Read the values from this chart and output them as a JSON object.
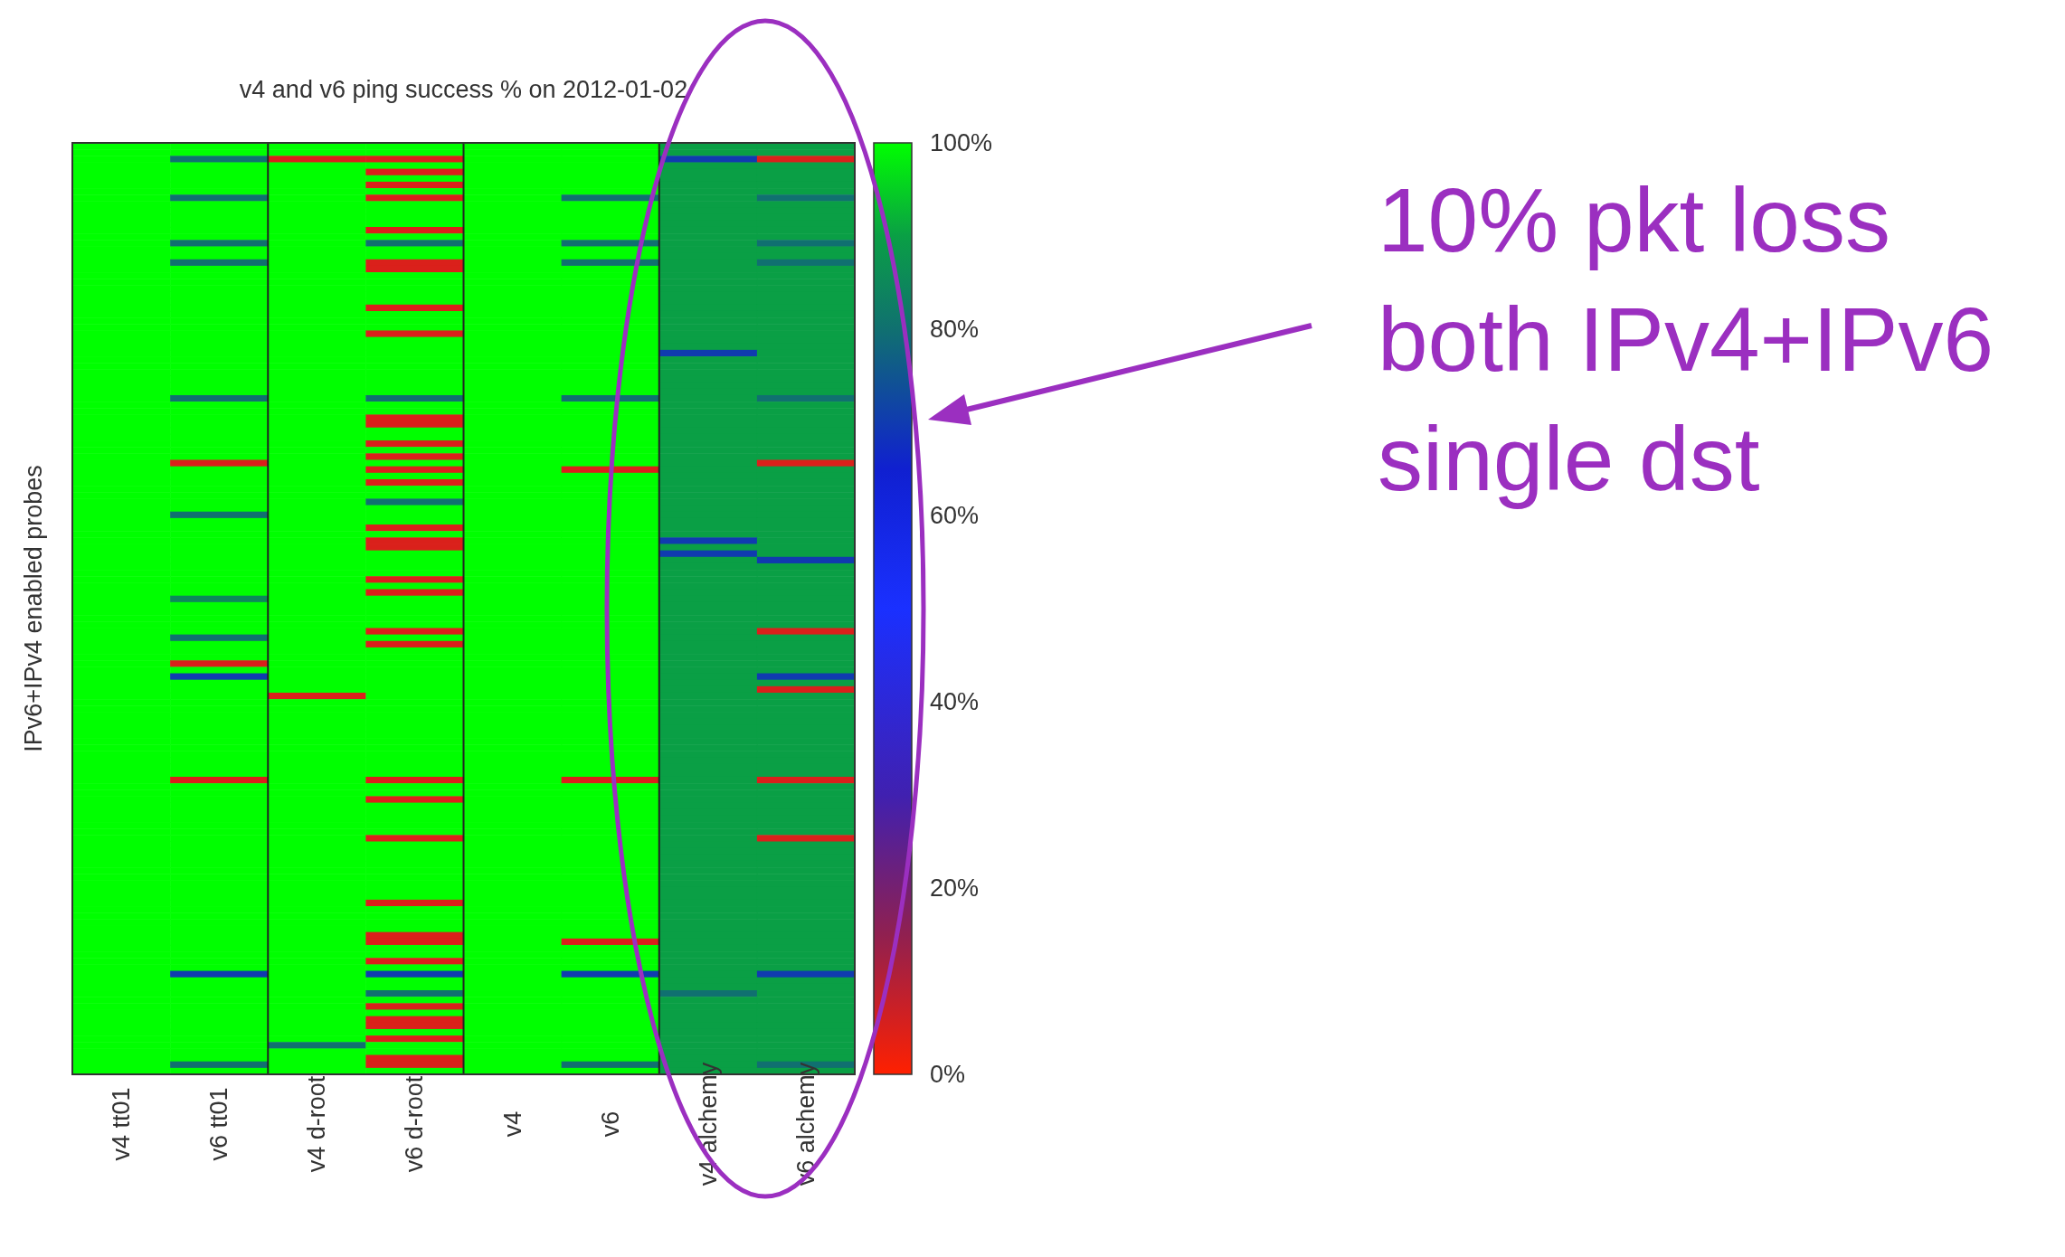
{
  "chart_data": {
    "type": "heatmap",
    "title": "v4 and v6 ping success % on 2012-01-02",
    "ylabel": "IPv6+IPv4 enabled probes",
    "categories": [
      "v4 tt01",
      "v6 tt01",
      "v4 d-root",
      "v6 d-root",
      "v4",
      "v6",
      "v4 alchemy",
      "v6 alchemy"
    ],
    "y_categories": [
      null,
      null,
      null,
      null,
      null,
      null,
      null,
      null,
      null,
      null,
      null,
      null,
      null,
      null,
      null,
      null,
      null,
      null,
      null,
      null,
      null,
      null,
      null,
      null,
      null,
      null,
      null,
      null,
      null,
      null,
      null,
      null,
      null,
      null,
      null,
      null,
      null,
      null,
      null,
      null,
      null,
      null,
      null,
      null,
      null,
      null,
      null,
      null,
      null,
      null,
      null,
      null,
      null,
      null,
      null,
      null,
      null,
      null,
      null,
      null,
      null,
      null,
      null,
      null,
      null,
      null,
      null,
      null,
      null,
      null,
      null,
      null,
      null,
      null,
      null,
      null,
      null,
      null,
      null,
      null,
      null,
      null,
      null,
      null,
      null,
      null,
      null,
      null,
      null,
      null,
      null,
      null,
      null,
      null,
      null,
      null,
      null,
      null,
      null,
      null,
      null,
      null,
      null,
      null,
      null,
      null,
      null,
      null,
      null,
      null,
      null,
      null,
      null,
      null,
      null,
      null,
      null,
      null,
      null,
      null,
      null,
      null,
      null,
      null,
      null,
      null,
      null,
      null,
      null,
      null,
      null,
      null,
      null,
      null,
      null,
      null,
      null,
      null,
      null,
      null,
      null,
      null,
      null,
      null
    ],
    "clim": [
      0,
      100
    ],
    "cticks": [
      {
        "value": 0,
        "label": "0%"
      },
      {
        "value": 20,
        "label": "20%"
      },
      {
        "value": 40,
        "label": "40%"
      },
      {
        "value": 60,
        "label": "60%"
      },
      {
        "value": 80,
        "label": "80%"
      },
      {
        "value": 100,
        "label": "100%"
      }
    ],
    "annotations": [
      "10% pkt loss\nboth IPv4+IPv6\nsingle dst"
    ],
    "cells": [
      [
        100,
        100,
        100,
        100,
        100,
        100,
        90,
        90
      ],
      [
        100,
        100,
        100,
        100,
        100,
        100,
        90,
        90
      ],
      [
        100,
        80,
        5,
        5,
        100,
        100,
        70,
        5
      ],
      [
        100,
        100,
        100,
        100,
        100,
        100,
        90,
        90
      ],
      [
        100,
        100,
        100,
        5,
        100,
        100,
        90,
        90
      ],
      [
        100,
        100,
        100,
        100,
        100,
        100,
        90,
        90
      ],
      [
        100,
        100,
        100,
        5,
        100,
        100,
        90,
        90
      ],
      [
        100,
        100,
        100,
        100,
        100,
        100,
        90,
        90
      ],
      [
        100,
        80,
        100,
        5,
        100,
        80,
        90,
        80
      ],
      [
        100,
        100,
        100,
        100,
        100,
        100,
        90,
        90
      ],
      [
        100,
        100,
        100,
        100,
        100,
        100,
        90,
        90
      ],
      [
        100,
        100,
        100,
        100,
        100,
        100,
        90,
        90
      ],
      [
        100,
        100,
        100,
        100,
        100,
        100,
        90,
        90
      ],
      [
        100,
        100,
        100,
        5,
        100,
        100,
        90,
        90
      ],
      [
        100,
        100,
        100,
        100,
        100,
        100,
        90,
        90
      ],
      [
        100,
        80,
        100,
        80,
        100,
        80,
        90,
        80
      ],
      [
        100,
        100,
        100,
        100,
        100,
        100,
        90,
        90
      ],
      [
        100,
        100,
        100,
        100,
        100,
        100,
        90,
        90
      ],
      [
        100,
        80,
        100,
        5,
        100,
        80,
        90,
        80
      ],
      [
        100,
        100,
        100,
        5,
        100,
        100,
        90,
        90
      ],
      [
        100,
        100,
        100,
        100,
        100,
        100,
        90,
        90
      ],
      [
        100,
        100,
        100,
        100,
        100,
        100,
        90,
        90
      ],
      [
        100,
        100,
        100,
        100,
        100,
        100,
        90,
        90
      ],
      [
        100,
        100,
        100,
        100,
        100,
        100,
        90,
        90
      ],
      [
        100,
        100,
        100,
        100,
        100,
        100,
        90,
        90
      ],
      [
        100,
        100,
        100,
        5,
        100,
        100,
        90,
        90
      ],
      [
        100,
        100,
        100,
        100,
        100,
        100,
        90,
        90
      ],
      [
        100,
        100,
        100,
        100,
        100,
        100,
        90,
        90
      ],
      [
        100,
        100,
        100,
        100,
        100,
        100,
        90,
        90
      ],
      [
        100,
        100,
        100,
        5,
        100,
        100,
        90,
        90
      ],
      [
        100,
        100,
        100,
        100,
        100,
        100,
        90,
        90
      ],
      [
        100,
        100,
        100,
        100,
        100,
        100,
        90,
        90
      ],
      [
        100,
        100,
        100,
        100,
        100,
        100,
        70,
        90
      ],
      [
        100,
        100,
        100,
        100,
        100,
        100,
        90,
        90
      ],
      [
        100,
        100,
        100,
        100,
        100,
        100,
        90,
        90
      ],
      [
        100,
        100,
        100,
        100,
        100,
        100,
        90,
        90
      ],
      [
        100,
        100,
        100,
        100,
        100,
        100,
        90,
        90
      ],
      [
        100,
        100,
        100,
        100,
        100,
        100,
        90,
        90
      ],
      [
        100,
        100,
        100,
        100,
        100,
        100,
        90,
        90
      ],
      [
        100,
        80,
        100,
        80,
        100,
        80,
        90,
        80
      ],
      [
        100,
        100,
        100,
        100,
        100,
        100,
        90,
        90
      ],
      [
        100,
        100,
        100,
        100,
        100,
        100,
        90,
        90
      ],
      [
        100,
        100,
        100,
        5,
        100,
        100,
        90,
        90
      ],
      [
        100,
        100,
        100,
        5,
        100,
        100,
        90,
        90
      ],
      [
        100,
        100,
        100,
        100,
        100,
        100,
        90,
        90
      ],
      [
        100,
        100,
        100,
        100,
        100,
        100,
        90,
        90
      ],
      [
        100,
        100,
        100,
        5,
        100,
        100,
        90,
        90
      ],
      [
        100,
        100,
        100,
        100,
        100,
        100,
        90,
        90
      ],
      [
        100,
        100,
        100,
        5,
        100,
        100,
        90,
        90
      ],
      [
        100,
        5,
        100,
        100,
        100,
        100,
        90,
        5
      ],
      [
        100,
        100,
        100,
        5,
        100,
        5,
        90,
        90
      ],
      [
        100,
        100,
        100,
        100,
        100,
        100,
        90,
        90
      ],
      [
        100,
        100,
        100,
        5,
        100,
        100,
        90,
        90
      ],
      [
        100,
        100,
        100,
        100,
        100,
        100,
        90,
        90
      ],
      [
        100,
        100,
        100,
        100,
        100,
        100,
        90,
        90
      ],
      [
        100,
        100,
        100,
        80,
        100,
        100,
        90,
        90
      ],
      [
        100,
        100,
        100,
        100,
        100,
        100,
        90,
        90
      ],
      [
        100,
        80,
        100,
        100,
        100,
        100,
        90,
        90
      ],
      [
        100,
        100,
        100,
        100,
        100,
        100,
        90,
        90
      ],
      [
        100,
        100,
        100,
        5,
        100,
        100,
        90,
        90
      ],
      [
        100,
        100,
        100,
        100,
        100,
        100,
        90,
        90
      ],
      [
        100,
        100,
        100,
        5,
        100,
        100,
        70,
        90
      ],
      [
        100,
        100,
        100,
        5,
        100,
        100,
        90,
        90
      ],
      [
        100,
        100,
        100,
        100,
        100,
        100,
        70,
        90
      ],
      [
        100,
        100,
        100,
        100,
        100,
        100,
        90,
        70
      ],
      [
        100,
        100,
        100,
        100,
        100,
        100,
        90,
        90
      ],
      [
        100,
        100,
        100,
        100,
        100,
        100,
        90,
        90
      ],
      [
        100,
        100,
        100,
        5,
        100,
        100,
        90,
        90
      ],
      [
        100,
        100,
        100,
        100,
        100,
        100,
        90,
        90
      ],
      [
        100,
        100,
        100,
        5,
        100,
        100,
        90,
        90
      ],
      [
        100,
        85,
        100,
        100,
        100,
        100,
        90,
        90
      ],
      [
        100,
        100,
        100,
        100,
        100,
        100,
        90,
        90
      ],
      [
        100,
        100,
        100,
        100,
        100,
        100,
        90,
        90
      ],
      [
        100,
        100,
        100,
        100,
        100,
        100,
        90,
        90
      ],
      [
        100,
        100,
        100,
        100,
        100,
        100,
        90,
        90
      ],
      [
        100,
        100,
        100,
        5,
        100,
        100,
        90,
        5
      ],
      [
        100,
        80,
        100,
        100,
        100,
        100,
        90,
        90
      ],
      [
        100,
        100,
        100,
        5,
        100,
        100,
        90,
        90
      ],
      [
        100,
        100,
        100,
        100,
        100,
        100,
        90,
        90
      ],
      [
        100,
        100,
        100,
        100,
        100,
        100,
        90,
        90
      ],
      [
        100,
        5,
        100,
        100,
        100,
        100,
        90,
        90
      ],
      [
        100,
        100,
        100,
        100,
        100,
        100,
        90,
        90
      ],
      [
        100,
        70,
        100,
        100,
        100,
        100,
        90,
        70
      ],
      [
        100,
        100,
        100,
        100,
        100,
        100,
        90,
        90
      ],
      [
        100,
        100,
        100,
        100,
        100,
        100,
        90,
        5
      ],
      [
        100,
        100,
        5,
        100,
        100,
        100,
        90,
        90
      ],
      [
        100,
        100,
        100,
        100,
        100,
        100,
        90,
        90
      ],
      [
        100,
        100,
        100,
        100,
        100,
        100,
        90,
        90
      ],
      [
        100,
        100,
        100,
        100,
        100,
        100,
        90,
        90
      ],
      [
        100,
        100,
        100,
        100,
        100,
        100,
        90,
        90
      ],
      [
        100,
        100,
        100,
        100,
        100,
        100,
        90,
        90
      ],
      [
        100,
        100,
        100,
        100,
        100,
        100,
        90,
        90
      ],
      [
        100,
        100,
        100,
        100,
        100,
        100,
        90,
        90
      ],
      [
        100,
        100,
        100,
        100,
        100,
        100,
        90,
        90
      ],
      [
        100,
        100,
        100,
        100,
        100,
        100,
        90,
        90
      ],
      [
        100,
        100,
        100,
        100,
        100,
        100,
        90,
        90
      ],
      [
        100,
        100,
        100,
        100,
        100,
        100,
        90,
        90
      ],
      [
        100,
        100,
        100,
        100,
        100,
        100,
        90,
        90
      ],
      [
        100,
        5,
        100,
        5,
        100,
        5,
        90,
        5
      ],
      [
        100,
        100,
        100,
        100,
        100,
        100,
        90,
        90
      ],
      [
        100,
        100,
        100,
        100,
        100,
        100,
        90,
        90
      ],
      [
        100,
        100,
        100,
        5,
        100,
        100,
        90,
        90
      ],
      [
        100,
        100,
        100,
        100,
        100,
        100,
        90,
        90
      ],
      [
        100,
        100,
        100,
        100,
        100,
        100,
        90,
        90
      ],
      [
        100,
        100,
        100,
        100,
        100,
        100,
        90,
        90
      ],
      [
        100,
        100,
        100,
        100,
        100,
        100,
        90,
        90
      ],
      [
        100,
        100,
        100,
        100,
        100,
        100,
        90,
        90
      ],
      [
        100,
        100,
        100,
        5,
        100,
        100,
        90,
        5
      ],
      [
        100,
        100,
        100,
        100,
        100,
        100,
        90,
        90
      ],
      [
        100,
        100,
        100,
        100,
        100,
        100,
        90,
        90
      ],
      [
        100,
        100,
        100,
        100,
        100,
        100,
        90,
        90
      ],
      [
        100,
        100,
        100,
        100,
        100,
        100,
        90,
        90
      ],
      [
        100,
        100,
        100,
        100,
        100,
        100,
        90,
        90
      ],
      [
        100,
        100,
        100,
        100,
        100,
        100,
        90,
        90
      ],
      [
        100,
        100,
        100,
        100,
        100,
        100,
        90,
        90
      ],
      [
        100,
        100,
        100,
        100,
        100,
        100,
        90,
        90
      ],
      [
        100,
        100,
        100,
        100,
        100,
        100,
        90,
        90
      ],
      [
        100,
        100,
        100,
        5,
        100,
        100,
        90,
        90
      ],
      [
        100,
        100,
        100,
        100,
        100,
        100,
        90,
        90
      ],
      [
        100,
        100,
        100,
        100,
        100,
        100,
        90,
        90
      ],
      [
        100,
        100,
        100,
        100,
        100,
        100,
        90,
        90
      ],
      [
        100,
        100,
        100,
        100,
        100,
        100,
        90,
        90
      ],
      [
        100,
        100,
        100,
        5,
        100,
        100,
        90,
        90
      ],
      [
        100,
        100,
        100,
        5,
        100,
        5,
        90,
        90
      ],
      [
        100,
        100,
        100,
        100,
        100,
        100,
        90,
        90
      ],
      [
        100,
        100,
        100,
        100,
        100,
        100,
        90,
        90
      ],
      [
        100,
        100,
        100,
        5,
        100,
        100,
        90,
        90
      ],
      [
        100,
        100,
        100,
        100,
        100,
        100,
        90,
        90
      ],
      [
        100,
        70,
        100,
        70,
        100,
        70,
        90,
        70
      ],
      [
        100,
        100,
        100,
        100,
        100,
        100,
        90,
        90
      ],
      [
        100,
        100,
        100,
        100,
        100,
        100,
        90,
        90
      ],
      [
        100,
        100,
        100,
        80,
        100,
        100,
        80,
        90
      ],
      [
        100,
        100,
        100,
        100,
        100,
        100,
        90,
        90
      ],
      [
        100,
        100,
        100,
        5,
        100,
        100,
        90,
        90
      ],
      [
        100,
        100,
        100,
        100,
        100,
        100,
        90,
        90
      ],
      [
        100,
        100,
        100,
        5,
        100,
        100,
        90,
        90
      ],
      [
        100,
        100,
        100,
        5,
        100,
        100,
        90,
        90
      ],
      [
        100,
        100,
        100,
        100,
        100,
        100,
        90,
        90
      ],
      [
        100,
        100,
        100,
        5,
        100,
        100,
        90,
        90
      ],
      [
        100,
        100,
        80,
        100,
        100,
        100,
        90,
        90
      ],
      [
        100,
        100,
        100,
        100,
        100,
        100,
        90,
        90
      ],
      [
        100,
        100,
        100,
        5,
        100,
        100,
        90,
        90
      ],
      [
        100,
        80,
        100,
        5,
        100,
        80,
        90,
        80
      ],
      [
        100,
        100,
        100,
        100,
        100,
        100,
        90,
        90
      ]
    ]
  }
}
